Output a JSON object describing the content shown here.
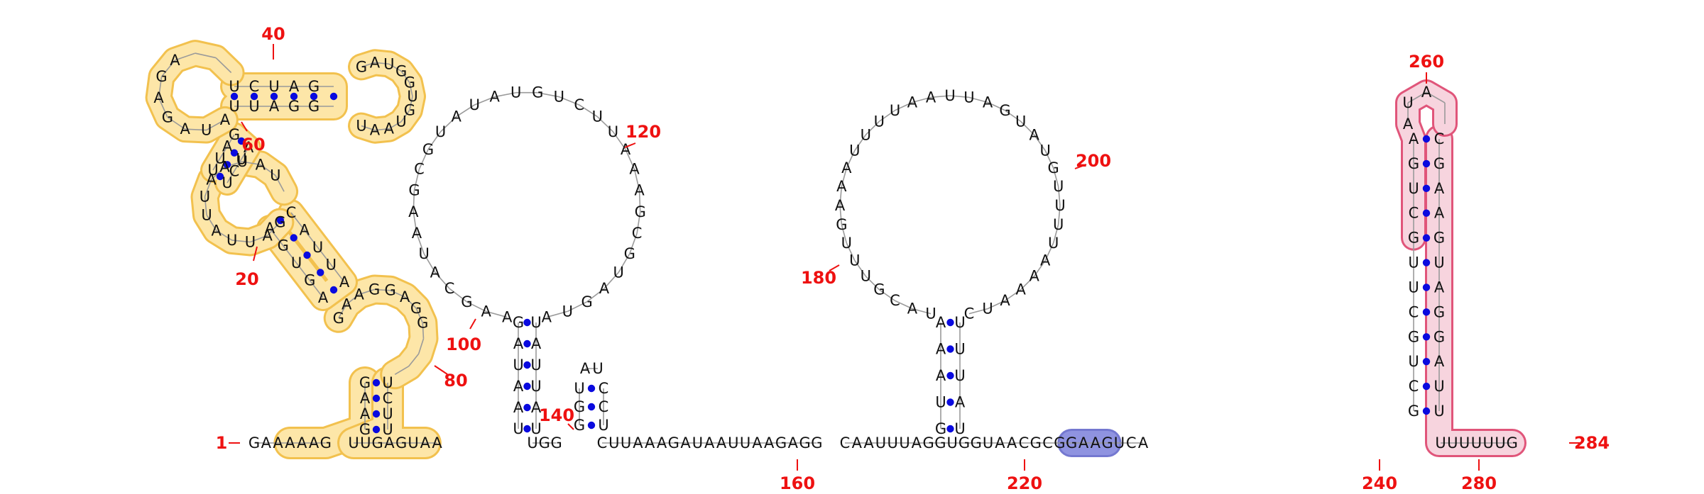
{
  "diagram": {
    "type": "rna-secondary-structure",
    "colors": {
      "label": "#ee1111",
      "pair_dot": "#0a0adf",
      "highlight_yellow_fill": "#fde6a8",
      "highlight_yellow_stroke": "#f2c14e",
      "highlight_pink_fill": "#f7d4de",
      "highlight_pink_stroke": "#e0557a",
      "highlight_blue_fill": "#8f93e0"
    },
    "main_line": {
      "seg1": "GAAAAAG",
      "seg2": "UUGAGUAA",
      "seg3": "UGG",
      "seg4": "CUUAAAGAUAAUUAAGAGG",
      "seg5": "CAAUUUAGGUGGUAACGCGGAAGUCA",
      "seg6": "UUUUUUG"
    },
    "helix_left_stems": {
      "left": "GAAG",
      "right": "UCUU"
    },
    "multiloop_top": "GAAGGAGG",
    "helix_a_left": "AGUGA",
    "helix_a_right": "CAUUA",
    "loop_mid": "GAUUAUUAAUAU",
    "helix_b_bottom": "UUAGG",
    "helix_b_top": "UCUAG",
    "loop_top_left": "AUAGAGA",
    "loop_top_right": "GAUGGUGUAAU",
    "loop_hp100": "AAGCAUAAGCGUAUAUGUCUUAAAGCGUAGUA",
    "stem100_left": "UAAUAG",
    "stem100_right": "UAUUAU",
    "small_hp": {
      "left": "GGU",
      "loop": "AU",
      "right": "UCC"
    },
    "loop_hp180": "UACGUUUGAAAUUUUAAUUAGUAUGUUUUAAAAUC",
    "stem180_left": "GUAAA",
    "stem180_right": "UAUUU",
    "hp260_left": "GCUGCUUGCUGA",
    "hp260_right": "UUAGGAUGAAGC",
    "hp260_loop": "AUA",
    "labels": {
      "n1": "1",
      "n20": "20",
      "n40": "40",
      "n60": "60",
      "n80": "80",
      "n100": "100",
      "n120": "120",
      "n140": "140",
      "n160": "160",
      "n180": "180",
      "n200": "200",
      "n220": "220",
      "n240": "240",
      "n260": "260",
      "n280": "280",
      "n284": "284"
    }
  }
}
